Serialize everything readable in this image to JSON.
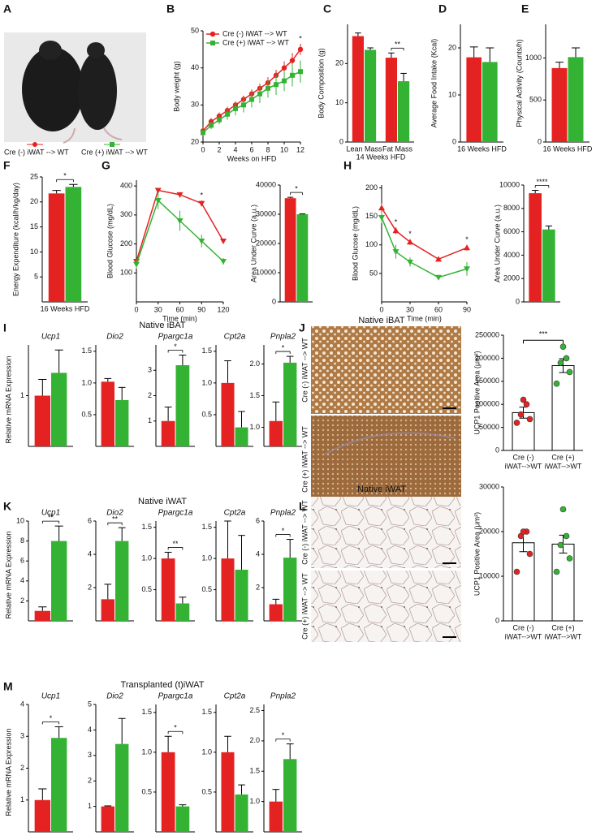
{
  "photo": {
    "panel": "A",
    "legend": [
      {
        "label": "Cre (-) iWAT --> WT",
        "color": "#e52222"
      },
      {
        "label": "Cre (+) iWAT --> WT",
        "color": "#34b234"
      }
    ]
  },
  "micrographs": [
    {
      "panel": "J",
      "title": "Native iBAT",
      "rows": [
        "Cre (-) iWAT --> WT",
        "Cre (+) iWAT --> WT"
      ],
      "colors": [
        "#e52222",
        "#34b234"
      ]
    },
    {
      "panel": "L",
      "title": "Native iWAT",
      "rows": [
        "Cre (-) iWAT --> WT",
        "Cre (+) iWAT --> WT"
      ],
      "colors": [
        "#e52222",
        "#34b234"
      ]
    }
  ],
  "chart_data": [
    {
      "panel": "B",
      "type": "line",
      "ylabel": "Body weight (g)",
      "xlabel": "Weeks on HFD",
      "x": [
        0,
        1,
        2,
        3,
        4,
        5,
        6,
        7,
        8,
        9,
        10,
        11,
        12
      ],
      "xlim": [
        0,
        12
      ],
      "xticks": [
        0,
        2,
        4,
        6,
        8,
        10,
        12
      ],
      "ylim": [
        20,
        50
      ],
      "yticks": [
        20,
        30,
        40,
        50
      ],
      "legend": "upper left",
      "series": [
        {
          "name": "Cre (-) iWAT --> WT",
          "color": "#e52222",
          "marker": "circle",
          "values": [
            23,
            25.5,
            27,
            28.5,
            30,
            31.5,
            33,
            34.5,
            36,
            38,
            40,
            42,
            45
          ],
          "errors": [
            0.8,
            1,
            1,
            1,
            1,
            1,
            1.2,
            1.3,
            1.5,
            1.5,
            1.8,
            2,
            1.5
          ]
        },
        {
          "name": "Cre (+) iWAT --> WT",
          "color": "#34b234",
          "marker": "square",
          "values": [
            22.5,
            24.5,
            26,
            27.5,
            29,
            30,
            31.5,
            33,
            34.5,
            35.5,
            36.5,
            38,
            39
          ],
          "errors": [
            0.8,
            1,
            1.2,
            1.5,
            1.8,
            2,
            2.2,
            2.5,
            2.5,
            2.8,
            2.8,
            3,
            3
          ]
        }
      ],
      "significance": [
        null,
        null,
        null,
        null,
        null,
        null,
        null,
        null,
        null,
        null,
        null,
        null,
        "*"
      ]
    },
    {
      "panel": "C",
      "type": "bar",
      "ylabel": "Body Composition (g)",
      "xlabel": "14 Weeks HFD",
      "categories": [
        "Lean Mass",
        "Fat Mass"
      ],
      "ylim": [
        0,
        30
      ],
      "yticks": [
        0,
        10,
        20
      ],
      "series": [
        {
          "color": "#e52222",
          "values": [
            27,
            21.5
          ],
          "errors": [
            0.8,
            1.2
          ]
        },
        {
          "color": "#34b234",
          "values": [
            23.5,
            15.5
          ],
          "errors": [
            0.5,
            2
          ]
        }
      ],
      "significance": [
        null,
        "**"
      ]
    },
    {
      "panel": "D",
      "type": "bar",
      "ylabel": "Average Food Intake (Kcal)",
      "categories": [
        "16 Weeks HFD"
      ],
      "ylim": [
        0,
        25
      ],
      "yticks": [
        0,
        10,
        20
      ],
      "series": [
        {
          "color": "#e52222",
          "values": [
            18
          ],
          "errors": [
            2.2
          ]
        },
        {
          "color": "#34b234",
          "values": [
            17
          ],
          "errors": [
            3
          ]
        }
      ]
    },
    {
      "panel": "E",
      "type": "bar",
      "ylabel": "Physical Activity (Counts/h)",
      "categories": [
        "16 Weeks HFD"
      ],
      "ylim": [
        0,
        1400
      ],
      "yticks": [
        0,
        500,
        1000
      ],
      "series": [
        {
          "color": "#e52222",
          "values": [
            880
          ],
          "errors": [
            70
          ]
        },
        {
          "color": "#34b234",
          "values": [
            1010
          ],
          "errors": [
            110
          ]
        }
      ]
    },
    {
      "panel": "F",
      "type": "bar",
      "ylabel": "Energy Expenditure (kcal/h/kg/day)",
      "categories": [
        "16 Weeks HFD"
      ],
      "ylim": [
        0,
        25
      ],
      "yticks": [
        5,
        10,
        15,
        20,
        25
      ],
      "series": [
        {
          "color": "#e52222",
          "values": [
            21.7
          ],
          "errors": [
            0.6
          ]
        },
        {
          "color": "#34b234",
          "values": [
            23
          ],
          "errors": [
            0.5
          ]
        }
      ],
      "significance": [
        "*"
      ]
    },
    {
      "panel": "G",
      "type": "line",
      "ylabel": "Blood Glucose (mg/dL)",
      "xlabel": "Time (min)",
      "x": [
        0,
        30,
        60,
        90,
        120
      ],
      "xlim": [
        0,
        120
      ],
      "xticks": [
        0,
        30,
        60,
        90,
        120
      ],
      "ylim": [
        0,
        420
      ],
      "yticks": [
        100,
        200,
        300,
        400
      ],
      "series": [
        {
          "color": "#e52222",
          "marker": "tri-down",
          "values": [
            140,
            385,
            370,
            340,
            210
          ],
          "errors": [
            5,
            8,
            8,
            10,
            8
          ]
        },
        {
          "color": "#34b234",
          "marker": "tri-down",
          "values": [
            130,
            350,
            280,
            210,
            140
          ],
          "errors": [
            15,
            30,
            35,
            22,
            12
          ]
        }
      ],
      "significance": [
        null,
        null,
        null,
        "*",
        null
      ]
    },
    {
      "type": "bar",
      "ylabel": "Area Under Curve (a.u.)",
      "ylim": [
        0,
        40000
      ],
      "yticks": [
        0,
        10000,
        20000,
        30000,
        40000
      ],
      "series": [
        {
          "color": "#e52222",
          "values": [
            35500
          ],
          "errors": [
            300
          ]
        },
        {
          "color": "#34b234",
          "values": [
            30000
          ],
          "errors": [
            150
          ]
        }
      ],
      "significance": [
        "*"
      ]
    },
    {
      "panel": "H",
      "type": "line",
      "ylabel": "Blood Glucose (mg/dL)",
      "xlabel": "Time (min)",
      "x": [
        0,
        15,
        30,
        60,
        90
      ],
      "xlim": [
        0,
        90
      ],
      "xticks": [
        0,
        30,
        60,
        90
      ],
      "ylim": [
        0,
        205
      ],
      "yticks": [
        50,
        100,
        150,
        200
      ],
      "series": [
        {
          "color": "#e52222",
          "marker": "tri-up",
          "values": [
            165,
            125,
            105,
            75,
            95
          ],
          "errors": [
            8,
            6,
            5,
            4,
            5
          ]
        },
        {
          "color": "#34b234",
          "marker": "tri-down",
          "values": [
            148,
            88,
            70,
            43,
            58
          ],
          "errors": [
            10,
            12,
            8,
            4,
            12
          ]
        }
      ],
      "significance": [
        null,
        "*",
        "*",
        null,
        "*"
      ]
    },
    {
      "type": "bar",
      "ylabel": "Area Under Curve (a.u.)",
      "ylim": [
        0,
        10000
      ],
      "yticks": [
        0,
        2000,
        4000,
        6000,
        8000,
        10000
      ],
      "series": [
        {
          "color": "#e52222",
          "values": [
            9300
          ],
          "errors": [
            250
          ]
        },
        {
          "color": "#34b234",
          "values": [
            6200
          ],
          "errors": [
            300
          ]
        }
      ],
      "significance": [
        "****"
      ]
    },
    {
      "panel": "I",
      "heading": "Native iBAT",
      "ylabel": "Relative mRNA Expression",
      "type": "bar",
      "title": "Ucp1",
      "ylim": [
        0,
        2
      ],
      "yticks": [
        1
      ],
      "series": [
        {
          "color": "#e52222",
          "values": [
            1.0
          ],
          "errors": [
            0.32
          ]
        },
        {
          "color": "#34b234",
          "values": [
            1.45
          ],
          "errors": [
            0.45
          ]
        }
      ]
    },
    {
      "type": "bar",
      "title": "Dio2",
      "ylim": [
        0,
        1.6
      ],
      "yticks": [
        0.5,
        {
          "value": 1,
          "label": "1.0"
        },
        1.5
      ],
      "series": [
        {
          "color": "#e52222",
          "values": [
            1.02
          ],
          "errors": [
            0.05
          ]
        },
        {
          "color": "#34b234",
          "values": [
            0.73
          ],
          "errors": [
            0.2
          ]
        }
      ]
    },
    {
      "type": "bar",
      "title": "Ppargc1a",
      "ylim": [
        0,
        4
      ],
      "yticks": [
        1,
        2,
        3
      ],
      "series": [
        {
          "color": "#e52222",
          "values": [
            1.0
          ],
          "errors": [
            0.55
          ]
        },
        {
          "color": "#34b234",
          "values": [
            3.2
          ],
          "errors": [
            0.4
          ]
        }
      ],
      "significance": [
        "*"
      ]
    },
    {
      "type": "bar",
      "title": "Cpt2a",
      "ylim": [
        0,
        1.6
      ],
      "yticks": [
        0.5,
        {
          "value": 1,
          "label": "1.0"
        },
        1.5
      ],
      "series": [
        {
          "color": "#e52222",
          "values": [
            1.0
          ],
          "errors": [
            0.35
          ]
        },
        {
          "color": "#34b234",
          "values": [
            0.3
          ],
          "errors": [
            0.25
          ]
        }
      ]
    },
    {
      "type": "bar",
      "title": "Pnpla2",
      "ylim": [
        0.7,
        2.3
      ],
      "yticks": [
        {
          "value": 1,
          "label": "1.0"
        },
        1.5,
        {
          "value": 2,
          "label": "2.0"
        }
      ],
      "series": [
        {
          "color": "#e52222",
          "values": [
            1.1
          ],
          "errors": [
            0.3
          ]
        },
        {
          "color": "#34b234",
          "values": [
            2.02
          ],
          "errors": [
            0.1
          ]
        }
      ],
      "significance": [
        "*"
      ]
    },
    {
      "type": "dot-bar",
      "ylabel": "UCP1 Positive Area (μm²)",
      "categories": [
        [
          "Cre (-)",
          "iWAT-->WT"
        ],
        [
          "Cre (+)",
          "iWAT-->WT"
        ]
      ],
      "values": [
        82000,
        184000
      ],
      "errors": [
        12000,
        15000
      ],
      "colors": [
        "#e52222",
        "#34b234"
      ],
      "points": [
        [
          60000,
          68000,
          78000,
          100000,
          110000
        ],
        [
          145000,
          170000,
          190000,
          200000,
          225000
        ]
      ],
      "ylim": [
        0,
        250000
      ],
      "yticks": [
        0,
        50000,
        100000,
        150000,
        200000,
        250000
      ],
      "significance": "***"
    },
    {
      "panel": "K",
      "heading": "Native iWAT",
      "ylabel": "Relative mRNA Expression",
      "type": "bar",
      "title": "Ucp1",
      "ylim": [
        0,
        10
      ],
      "yticks": [
        2,
        4,
        6,
        8,
        10
      ],
      "series": [
        {
          "color": "#e52222",
          "values": [
            1.0
          ],
          "errors": [
            0.4
          ]
        },
        {
          "color": "#34b234",
          "values": [
            8
          ],
          "errors": [
            1.5
          ]
        }
      ],
      "significance": [
        "**"
      ]
    },
    {
      "type": "bar",
      "title": "Dio2",
      "ylim": [
        0,
        6
      ],
      "yticks": [
        2,
        4,
        6
      ],
      "series": [
        {
          "color": "#e52222",
          "values": [
            1.3
          ],
          "errors": [
            0.9
          ]
        },
        {
          "color": "#34b234",
          "values": [
            4.8
          ],
          "errors": [
            0.8
          ]
        }
      ],
      "significance": [
        "**"
      ]
    },
    {
      "type": "bar",
      "title": "Ppargc1a",
      "ylim": [
        0,
        1.6
      ],
      "yticks": [
        0.5,
        {
          "value": 1,
          "label": "1.0"
        },
        1.5
      ],
      "series": [
        {
          "color": "#e52222",
          "values": [
            1.0
          ],
          "errors": [
            0.1
          ]
        },
        {
          "color": "#34b234",
          "values": [
            0.28
          ],
          "errors": [
            0.1
          ]
        }
      ],
      "significance": [
        "**"
      ]
    },
    {
      "type": "bar",
      "title": "Cpt2a",
      "ylim": [
        0,
        1.6
      ],
      "yticks": [
        0.5,
        {
          "value": 1,
          "label": "1.0"
        },
        1.5
      ],
      "series": [
        {
          "color": "#e52222",
          "values": [
            1.0
          ],
          "errors": [
            0.6
          ]
        },
        {
          "color": "#34b234",
          "values": [
            0.82
          ],
          "errors": [
            0.55
          ]
        }
      ]
    },
    {
      "type": "bar",
      "title": "Pnpla2",
      "ylim": [
        0,
        6
      ],
      "yticks": [
        2,
        4,
        6
      ],
      "series": [
        {
          "color": "#e52222",
          "values": [
            1.0
          ],
          "errors": [
            0.3
          ]
        },
        {
          "color": "#34b234",
          "values": [
            3.8
          ],
          "errors": [
            1.1
          ]
        }
      ],
      "significance": [
        "*"
      ]
    },
    {
      "type": "dot-bar",
      "ylabel": "UCP1 Positive Area (μm²)",
      "categories": [
        [
          "Cre (-)",
          "iWAT-->WT"
        ],
        [
          "Cre (+)",
          "iWAT-->WT"
        ]
      ],
      "values": [
        17500,
        17200
      ],
      "errors": [
        2000,
        2000
      ],
      "colors": [
        "#e52222",
        "#34b234"
      ],
      "points": [
        [
          11000,
          15000,
          19000,
          20000,
          20000
        ],
        [
          11000,
          14000,
          17000,
          19000,
          25000
        ]
      ],
      "ylim": [
        0,
        30000
      ],
      "yticks": [
        0,
        10000,
        20000,
        30000
      ]
    },
    {
      "panel": "M",
      "heading": "Transplanted (t)iWAT",
      "ylabel": "Relative mRNA Expression",
      "type": "bar",
      "title": "Ucp1",
      "ylim": [
        0,
        4
      ],
      "yticks": [
        1,
        2,
        3,
        4
      ],
      "series": [
        {
          "color": "#e52222",
          "values": [
            1.0
          ],
          "errors": [
            0.35
          ]
        },
        {
          "color": "#34b234",
          "values": [
            2.95
          ],
          "errors": [
            0.35
          ]
        }
      ],
      "significance": [
        "*"
      ]
    },
    {
      "type": "bar",
      "title": "Dio2",
      "ylim": [
        0,
        5
      ],
      "yticks": [
        1,
        2,
        3,
        4,
        5
      ],
      "series": [
        {
          "color": "#e52222",
          "values": [
            1.0
          ],
          "errors": [
            0.02
          ]
        },
        {
          "color": "#34b234",
          "values": [
            3.45
          ],
          "errors": [
            1.0
          ]
        }
      ]
    },
    {
      "type": "bar",
      "title": "Ppargc1a",
      "ylim": [
        0,
        1.6
      ],
      "yticks": [
        0.5,
        {
          "value": 1,
          "label": "1.0"
        },
        1.5
      ],
      "series": [
        {
          "color": "#e52222",
          "values": [
            1.0
          ],
          "errors": [
            0.2
          ]
        },
        {
          "color": "#34b234",
          "values": [
            0.32
          ],
          "errors": [
            0.02
          ]
        }
      ],
      "significance": [
        "*"
      ]
    },
    {
      "type": "bar",
      "title": "Cpt2a",
      "ylim": [
        0,
        1.6
      ],
      "yticks": [
        0.5,
        {
          "value": 1,
          "label": "1.0"
        },
        1.5
      ],
      "series": [
        {
          "color": "#e52222",
          "values": [
            1.0
          ],
          "errors": [
            0.2
          ]
        },
        {
          "color": "#34b234",
          "values": [
            0.47
          ],
          "errors": [
            0.12
          ]
        }
      ]
    },
    {
      "type": "bar",
      "title": "Pnpla2",
      "ylim": [
        0.5,
        2.6
      ],
      "yticks": [
        {
          "value": 1,
          "label": "1.0"
        },
        1.5,
        {
          "value": 2,
          "label": "2.0"
        },
        2.5
      ],
      "series": [
        {
          "color": "#e52222",
          "values": [
            1.0
          ],
          "errors": [
            0.2
          ]
        },
        {
          "color": "#34b234",
          "values": [
            1.7
          ],
          "errors": [
            0.25
          ]
        }
      ],
      "significance": [
        "*"
      ]
    }
  ]
}
